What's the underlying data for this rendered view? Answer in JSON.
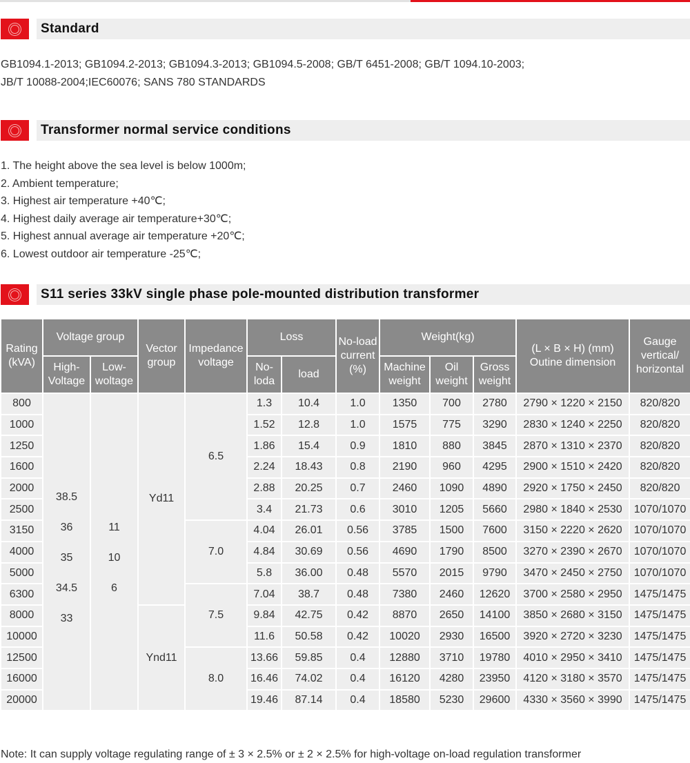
{
  "sections": {
    "standard": {
      "title": "Standard",
      "lines": [
        "GB1094.1-2013;  GB1094.2-2013;  GB1094.3-2013;  GB1094.5-2008;  GB/T 6451-2008;  GB/T 1094.10-2003;",
        "JB/T 10088-2004;IEC60076; SANS 780 STANDARDS"
      ]
    },
    "conditions": {
      "title": "Transformer normal service conditions",
      "lines": [
        "1. The height above the sea level is below 1000m;",
        "2. Ambient temperature;",
        "3. Highest air temperature +40℃;",
        "4. Highest daily average air temperature+30℃;",
        "5. Highest annual average air temperature +20℃;",
        "6. Lowest outdoor air temperature -25℃;"
      ]
    },
    "table": {
      "title": "S11 series 33kV single phase pole-mounted distribution transformer"
    }
  },
  "table": {
    "headers": {
      "rating": "Rating (kVA)",
      "voltage_group": "Voltage group",
      "high": "High-Voltage",
      "low": "Low-woltage",
      "vector": "Vector group",
      "impedance": "Impedance voltage",
      "loss": "Loss",
      "noload_loss": "No-loda",
      "load_loss": "load",
      "noload_current": "No-load current (%)",
      "weight": "Weight(kg)",
      "machine": "Machine weight",
      "oil": "Oil weight",
      "gross": "Gross weight",
      "dimension": "(L × B × H) (mm) Outine dimension",
      "gauge": "Gauge vertical/ horizontal"
    },
    "high_voltage": [
      "38.5",
      "36",
      "35",
      "34.5",
      "33"
    ],
    "low_voltage": [
      "11",
      "10",
      "6"
    ],
    "vector_groups": [
      {
        "value": "Yd11",
        "rows": 10
      },
      {
        "value": "Ynd11",
        "rows": 5
      }
    ],
    "impedance_groups": [
      {
        "value": "6.5",
        "rows": 6
      },
      {
        "value": "7.0",
        "rows": 3
      },
      {
        "value": "7.5",
        "rows": 3
      },
      {
        "value": "8.0",
        "rows": 3
      }
    ],
    "rows": [
      [
        "800",
        "1.3",
        "10.4",
        "1.0",
        "1350",
        "700",
        "2780",
        "2790 × 1220 × 2150",
        "820/820"
      ],
      [
        "1000",
        "1.52",
        "12.8",
        "1.0",
        "1575",
        "775",
        "3290",
        "2830 × 1240 × 2250",
        "820/820"
      ],
      [
        "1250",
        "1.86",
        "15.4",
        "0.9",
        "1810",
        "880",
        "3845",
        "2870 × 1310 × 2370",
        "820/820"
      ],
      [
        "1600",
        "2.24",
        "18.43",
        "0.8",
        "2190",
        "960",
        "4295",
        "2900 × 1510 × 2420",
        "820/820"
      ],
      [
        "2000",
        "2.88",
        "20.25",
        "0.7",
        "2460",
        "1090",
        "4890",
        "2920 × 1750 × 2450",
        "820/820"
      ],
      [
        "2500",
        "3.4",
        "21.73",
        "0.6",
        "3010",
        "1205",
        "5660",
        "2980 × 1840 × 2530",
        "1070/1070"
      ],
      [
        "3150",
        "4.04",
        "26.01",
        "0.56",
        "3785",
        "1500",
        "7600",
        "3150 × 2220 × 2620",
        "1070/1070"
      ],
      [
        "4000",
        "4.84",
        "30.69",
        "0.56",
        "4690",
        "1790",
        "8500",
        "3270 × 2390 × 2670",
        "1070/1070"
      ],
      [
        "5000",
        "5.8",
        "36.00",
        "0.48",
        "5570",
        "2015",
        "9790",
        "3470 × 2450 × 2750",
        "1070/1070"
      ],
      [
        "6300",
        "7.04",
        "38.7",
        "0.48",
        "7380",
        "2460",
        "12620",
        "3700 × 2580 × 2950",
        "1475/1475"
      ],
      [
        "8000",
        "9.84",
        "42.75",
        "0.42",
        "8870",
        "2650",
        "14100",
        "3850 × 2680 × 3150",
        "1475/1475"
      ],
      [
        "10000",
        "11.6",
        "50.58",
        "0.42",
        "10020",
        "2930",
        "16500",
        "3920 × 2720 × 3230",
        "1475/1475"
      ],
      [
        "12500",
        "13.66",
        "59.85",
        "0.4",
        "12880",
        "3710",
        "19780",
        "4010 × 2950 × 3410",
        "1475/1475"
      ],
      [
        "16000",
        "16.46",
        "74.02",
        "0.4",
        "16120",
        "4280",
        "23950",
        "4120 × 3180 × 3570",
        "1475/1475"
      ],
      [
        "20000",
        "19.46",
        "87.14",
        "0.4",
        "18580",
        "5230",
        "29600",
        "4330 × 3560 × 3990",
        "1475/1475"
      ]
    ]
  },
  "note": "Note: It can supply voltage regulating range of  ± 3 × 2.5% or  ± 2 × 2.5% for high-voltage  on-load regulation transformer",
  "colors": {
    "accent": "#e3121b",
    "header_bg": "#8a8a8a",
    "cell_bg": "#eeeeee"
  }
}
